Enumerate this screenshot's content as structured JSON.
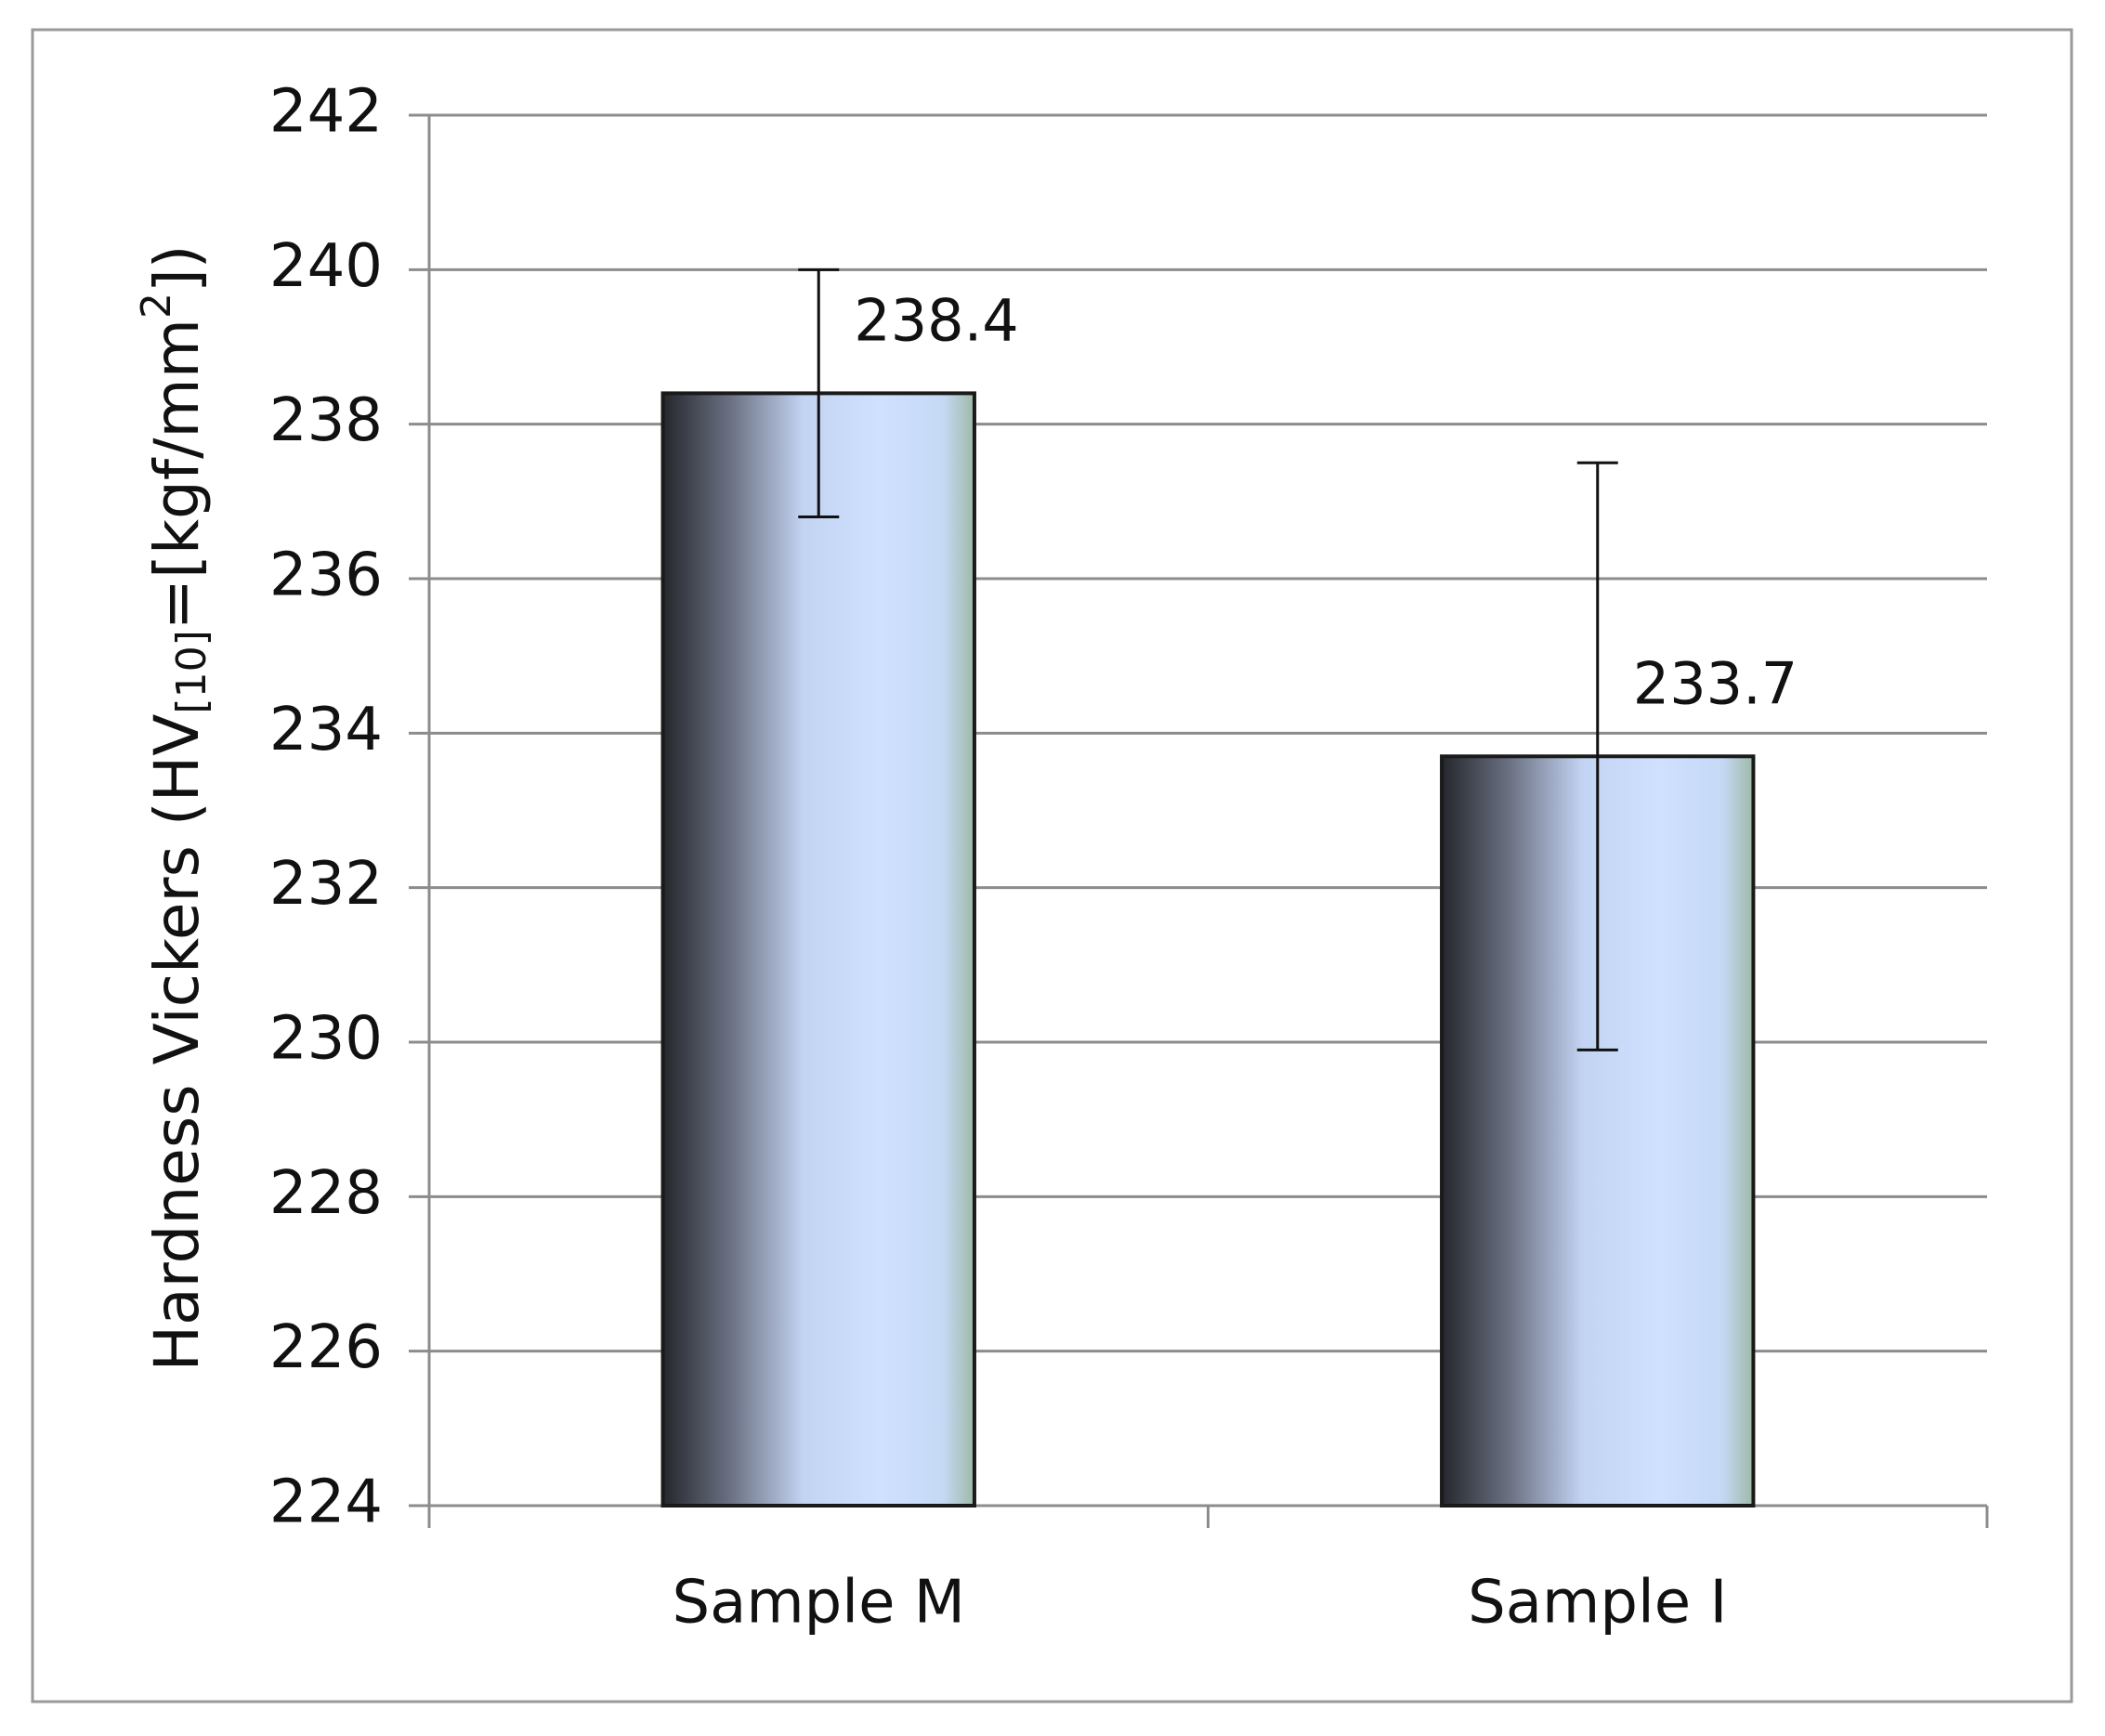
{
  "chart_data": {
    "type": "bar",
    "y_label": {
      "parts": [
        "Hardness Vickers (HV",
        "[10]",
        "=[kgf/mm",
        "2",
        "])"
      ]
    },
    "categories": [
      "Sample M",
      "Sample I"
    ],
    "values": [
      238.4,
      233.7
    ],
    "errors": [
      1.6,
      3.8
    ],
    "ylim": [
      224,
      242
    ],
    "yticks": [
      224,
      226,
      228,
      230,
      232,
      234,
      236,
      238,
      240,
      242
    ],
    "grid": true
  }
}
